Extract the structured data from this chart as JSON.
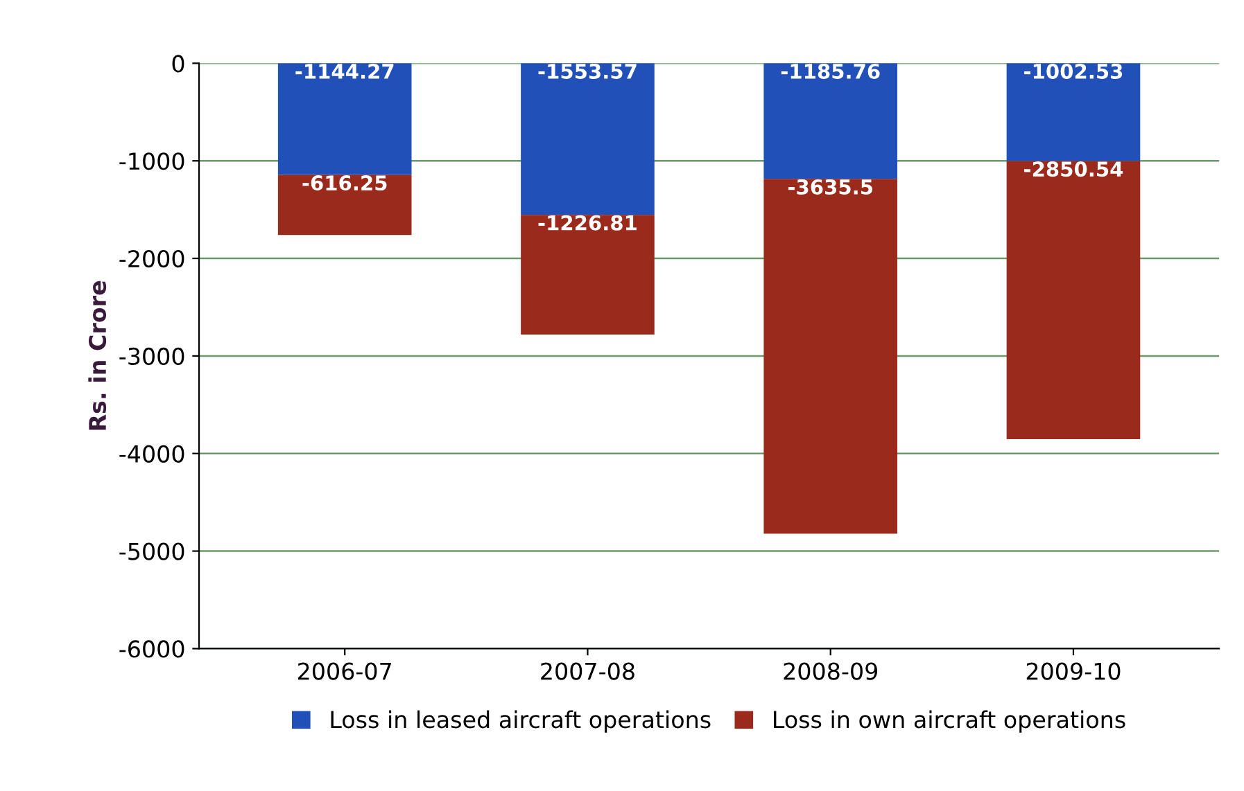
{
  "chart_data": {
    "type": "bar",
    "stacked": true,
    "ylabel": "Rs. in Crore",
    "categories": [
      "2006-07",
      "2007-08",
      "2008-09",
      "2009-10"
    ],
    "series": [
      {
        "name": "Loss in leased aircraft operations",
        "color": "#2050b8",
        "values": [
          -1144.27,
          -1553.57,
          -1185.76,
          -1002.53
        ]
      },
      {
        "name": "Loss in own aircraft operations",
        "color": "#9a2a1c",
        "values": [
          -616.25,
          -1226.81,
          -3635.5,
          -2850.54
        ]
      }
    ],
    "ylim": [
      -6000,
      0
    ],
    "yticks": [
      0,
      -1000,
      -2000,
      -3000,
      -4000,
      -5000,
      -6000
    ],
    "grid": "y",
    "legend": "bottom",
    "data_labels": true
  }
}
